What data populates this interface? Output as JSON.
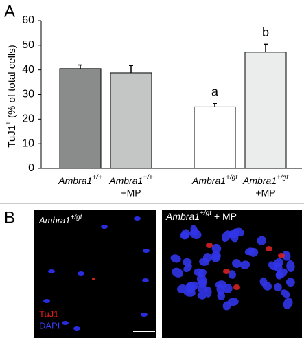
{
  "panel_a": {
    "label": "A",
    "chart_data": {
      "type": "bar",
      "y_label": {
        "text": "TuJ1",
        "superscript": "+",
        "suffix": " (% of total cells)"
      },
      "categories": [
        {
          "label": "Ambra1",
          "superscript": "+/+"
        },
        {
          "label": "Ambra1",
          "superscript": "+/+",
          "suffix": "+MP"
        },
        {
          "label": "Ambra1",
          "superscript": "+/gt"
        },
        {
          "label": "Ambra1",
          "superscript": "+/gt",
          "suffix": "+MP"
        }
      ],
      "values": [
        40.5,
        38.8,
        25.0,
        47.2
      ],
      "errors": [
        1.5,
        3.0,
        1.3,
        3.2
      ],
      "significance_labels": [
        null,
        null,
        "a",
        "b"
      ],
      "colors": [
        "#8a8c8b",
        "#c3c6c5",
        "#ffffff",
        "#ebedec"
      ],
      "ylim": [
        0,
        60
      ],
      "yticks": [
        0,
        10,
        20,
        30,
        40,
        50,
        60
      ]
    }
  },
  "panel_b": {
    "label": "B",
    "images": [
      {
        "label": "Ambra1",
        "superscript": "+/gt"
      },
      {
        "label": "Ambra1",
        "superscript": "+/gt",
        "suffix": " + MP"
      }
    ],
    "legend": [
      {
        "text": "TuJ1",
        "color": "#e0201a"
      },
      {
        "text": "DAPI",
        "color": "#3a3cf0"
      }
    ]
  }
}
